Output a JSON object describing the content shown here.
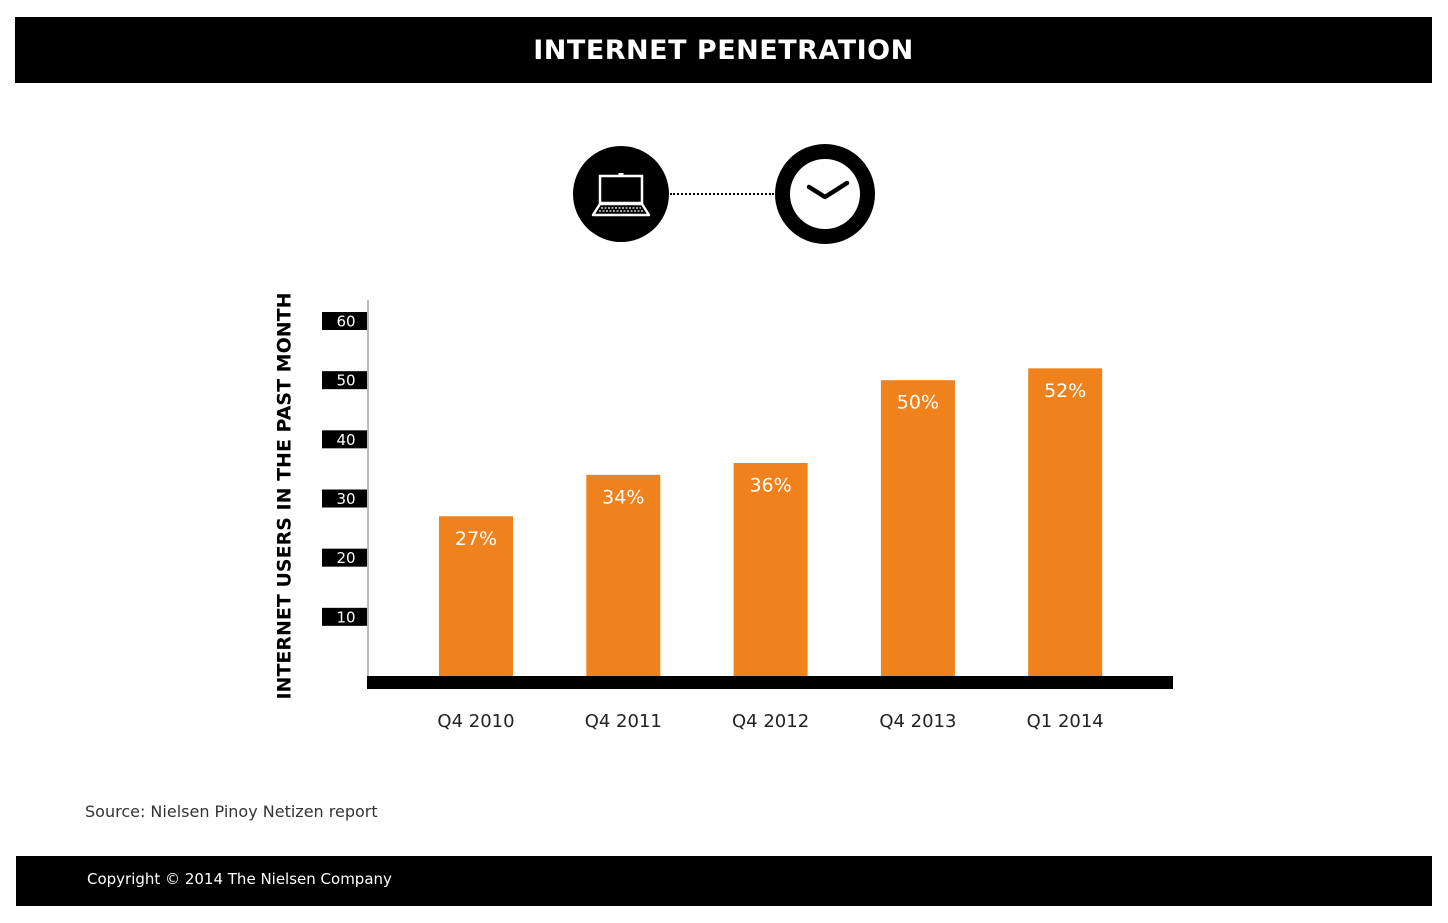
{
  "header": {
    "title": "INTERNET PENETRATION"
  },
  "icons": [
    "laptop-icon",
    "clock-icon"
  ],
  "colors": {
    "bar": "#F0821E",
    "header_bg": "#000000",
    "axis": "#000000",
    "tick_box": "#000000",
    "label_text": "#ffffff"
  },
  "chart_data": {
    "type": "bar",
    "title": "",
    "xlabel": "",
    "ylabel": "INTERNET USERS IN THE PAST MONTH",
    "ylim": [
      0,
      60
    ],
    "yticks": [
      10,
      20,
      30,
      40,
      50,
      60
    ],
    "categories": [
      "Q4 2010",
      "Q4 2011",
      "Q4 2012",
      "Q4 2013",
      "Q1 2014"
    ],
    "values": [
      27,
      34,
      36,
      50,
      52
    ],
    "value_labels": [
      "27%",
      "34%",
      "36%",
      "50%",
      "52%"
    ],
    "grid": false,
    "legend": "none"
  },
  "footer": {
    "source": "Source: Nielsen Pinoy Netizen report",
    "copyright": "Copyright © 2014 The Nielsen Company"
  }
}
